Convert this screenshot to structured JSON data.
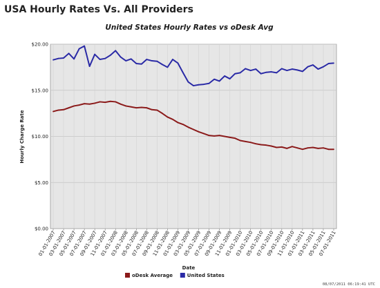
{
  "page_heading": "USA Hourly Rates Vs. All Providers",
  "timestamp": "08/07/2011 06:19:41 UTC",
  "chart_data": {
    "type": "line",
    "title": "United States Hourly Rates vs oDesk Avg",
    "xlabel": "Date",
    "ylabel": "Hourly Charge Rate",
    "ylim": [
      0,
      20
    ],
    "yticks": [
      "$0.00",
      "$5.00",
      "$10.00",
      "$15.00",
      "$20.00"
    ],
    "ytick_values": [
      0,
      5,
      10,
      15,
      20
    ],
    "grid": true,
    "legend_position": "bottom",
    "x": [
      "01-01-2007",
      "02-01-2007",
      "03-01-2007",
      "04-01-2007",
      "05-01-2007",
      "06-01-2007",
      "07-01-2007",
      "08-01-2007",
      "09-01-2007",
      "10-01-2007",
      "11-01-2007",
      "12-01-2007",
      "01-01-2008",
      "02-01-2008",
      "03-01-2008",
      "04-01-2008",
      "05-01-2008",
      "06-01-2008",
      "07-01-2008",
      "08-01-2008",
      "09-01-2008",
      "10-01-2008",
      "11-01-2008",
      "12-01-2008",
      "01-01-2009",
      "02-01-2009",
      "03-01-2009",
      "04-01-2009",
      "05-01-2009",
      "06-01-2009",
      "07-01-2009",
      "08-01-2009",
      "09-01-2009",
      "10-01-2009",
      "11-01-2009",
      "12-01-2009",
      "01-01-2010",
      "02-01-2010",
      "03-01-2010",
      "04-01-2010",
      "05-01-2010",
      "06-01-2010",
      "07-01-2010",
      "08-01-2010",
      "09-01-2010",
      "10-01-2010",
      "11-01-2010",
      "12-01-2010",
      "01-01-2011",
      "02-01-2011",
      "03-01-2011",
      "04-01-2011",
      "05-01-2011",
      "06-01-2011",
      "07-01-2011"
    ],
    "xtick_labels": [
      "01-01-2007",
      "03-01-2007",
      "05-01-2007",
      "07-01-2007",
      "09-01-2007",
      "11-01-2007",
      "01-01-2008",
      "03-01-2008",
      "05-01-2008",
      "07-01-2008",
      "09-01-2008",
      "11-01-2008",
      "01-01-2009",
      "03-01-2009",
      "05-01-2009",
      "07-01-2009",
      "09-01-2009",
      "11-01-2009",
      "01-01-2010",
      "03-01-2010",
      "05-01-2010",
      "07-01-2010",
      "09-01-2010",
      "11-01-2010",
      "01-01-2011",
      "03-01-2011",
      "05-01-2011",
      "07-01-2011"
    ],
    "series": [
      {
        "name": "oDesk Average",
        "color": "#8b1a1a",
        "values": [
          12.7,
          12.85,
          12.9,
          13.1,
          13.3,
          13.4,
          13.55,
          13.5,
          13.6,
          13.75,
          13.7,
          13.8,
          13.75,
          13.5,
          13.3,
          13.2,
          13.1,
          13.15,
          13.1,
          12.9,
          12.85,
          12.5,
          12.1,
          11.85,
          11.5,
          11.3,
          11.0,
          10.75,
          10.5,
          10.3,
          10.1,
          10.05,
          10.1,
          10.0,
          9.9,
          9.8,
          9.55,
          9.45,
          9.35,
          9.2,
          9.1,
          9.05,
          8.95,
          8.8,
          8.85,
          8.7,
          8.9,
          8.75,
          8.6,
          8.75,
          8.8,
          8.7,
          8.75,
          8.6,
          8.6
        ]
      },
      {
        "name": "United States",
        "color": "#2a2aa6",
        "values": [
          18.3,
          18.45,
          18.5,
          19.0,
          18.4,
          19.5,
          19.8,
          17.6,
          18.9,
          18.35,
          18.45,
          18.8,
          19.3,
          18.6,
          18.2,
          18.4,
          17.9,
          17.85,
          18.35,
          18.2,
          18.15,
          17.8,
          17.5,
          18.35,
          17.95,
          16.9,
          15.9,
          15.5,
          15.6,
          15.65,
          15.75,
          16.2,
          16.0,
          16.55,
          16.25,
          16.8,
          16.9,
          17.35,
          17.15,
          17.3,
          16.8,
          16.95,
          17.0,
          16.9,
          17.35,
          17.15,
          17.3,
          17.2,
          17.05,
          17.55,
          17.75,
          17.3,
          17.55,
          17.9,
          17.95
        ]
      }
    ]
  }
}
